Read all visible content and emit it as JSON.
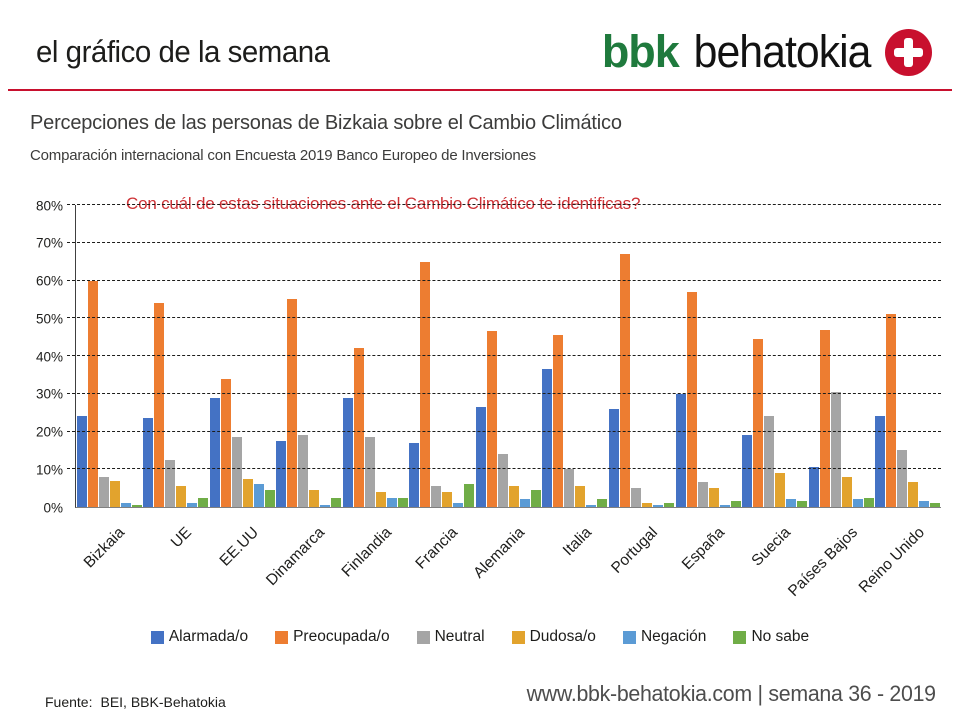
{
  "theme": {
    "accent_red": "#c8102e",
    "logo_green": "#1f7a3d",
    "question_red": "#ce3236",
    "text_dark": "#1d1d1b"
  },
  "header": {
    "title": "el gráfico de la semana",
    "logo": {
      "bbk": "bbk",
      "behatokia": "behatokia",
      "badge_icon": "plus-cross-icon"
    }
  },
  "titles": {
    "main": "Percepciones de las personas de Bizkaia sobre el Cambio Climático",
    "subtitle": "Comparación internacional con Encuesta 2019 Banco Europeo de Inversiones"
  },
  "chart_data": {
    "type": "bar",
    "question": "Con cuál de estas situaciones ante el Cambio Climático te identificas?",
    "categories": [
      "Bizkaia",
      "UE",
      "EE.UU",
      "Dinamarca",
      "Finlandia",
      "Francia",
      "Alemania",
      "Italia",
      "Portugal",
      "España",
      "Suecia",
      "Países Bajos",
      "Reino Unido"
    ],
    "series": [
      {
        "name": "Alarmada/o",
        "color": "#4472c4",
        "values": [
          24,
          23.5,
          29,
          17.5,
          29,
          17,
          26.5,
          36.5,
          26,
          30,
          19,
          10.5,
          24
        ]
      },
      {
        "name": "Preocupada/o",
        "color": "#ed7d31",
        "values": [
          60,
          54,
          34,
          55,
          42,
          65,
          46.5,
          45.5,
          67,
          57,
          44.5,
          47,
          51
        ]
      },
      {
        "name": "Neutral",
        "color": "#a5a5a5",
        "values": [
          8,
          12.5,
          18.5,
          19,
          18.5,
          5.5,
          14,
          10,
          5,
          6.5,
          24,
          30.5,
          15
        ]
      },
      {
        "name": "Dudosa/o",
        "color": "#e2a32d",
        "values": [
          7,
          5.5,
          7.5,
          4.5,
          4,
          4,
          5.5,
          5.5,
          1,
          5,
          9,
          8,
          6.5
        ]
      },
      {
        "name": "Negación",
        "color": "#5b9bd5",
        "values": [
          1,
          1,
          6,
          0.5,
          2.5,
          1,
          2,
          0.5,
          0.5,
          0.5,
          2,
          2,
          1.5
        ]
      },
      {
        "name": "No sabe",
        "color": "#70ad47",
        "values": [
          0.5,
          2.5,
          4.5,
          2.5,
          2.5,
          6,
          4.5,
          2,
          1,
          1.5,
          1.5,
          2.5,
          1
        ]
      }
    ],
    "ylim": [
      0,
      80
    ],
    "ytick_step": 10,
    "ytick_labels": [
      "0%",
      "10%",
      "20%",
      "30%",
      "40%",
      "50%",
      "60%",
      "70%",
      "80%"
    ],
    "grid": "horizontal-dashed",
    "legend_position": "bottom"
  },
  "footer": {
    "source_label": "Fuente:",
    "source_value": "BEI, BBK-Behatokia",
    "website": "www.bbk-behatokia.com",
    "separator": "|",
    "week": "semana 36 - 2019"
  }
}
